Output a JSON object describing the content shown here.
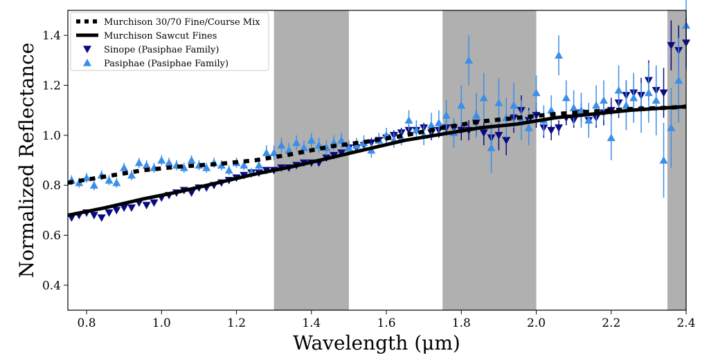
{
  "chart_data": {
    "type": "scatter",
    "xlabel": "Wavelength (μm)",
    "ylabel": "Normalized Reflectance",
    "xlim": [
      0.75,
      2.4
    ],
    "ylim": [
      0.3,
      1.5
    ],
    "xticks": [
      "0.8",
      "1.0",
      "1.2",
      "1.4",
      "1.6",
      "1.8",
      "2.0",
      "2.2",
      "2.4"
    ],
    "yticks": [
      "0.4",
      "0.6",
      "0.8",
      "1.0",
      "1.2",
      "1.4"
    ],
    "grid": false,
    "legend_position": "top-left",
    "shaded_bands": [
      [
        1.3,
        1.5
      ],
      [
        1.75,
        2.0
      ],
      [
        2.35,
        2.4
      ]
    ],
    "series": [
      {
        "name": "Murchison 30/70 Fine/Course Mix",
        "kind": "line",
        "style": "dotted",
        "color": "#000000",
        "x": [
          0.75,
          0.85,
          0.95,
          1.05,
          1.15,
          1.25,
          1.35,
          1.45,
          1.55,
          1.65,
          1.75,
          1.85,
          1.95,
          2.05,
          2.15,
          2.25,
          2.35,
          2.4
        ],
        "y": [
          0.81,
          0.835,
          0.86,
          0.875,
          0.885,
          0.9,
          0.925,
          0.955,
          0.975,
          1.0,
          1.03,
          1.055,
          1.07,
          1.085,
          1.095,
          1.105,
          1.11,
          1.115
        ]
      },
      {
        "name": "Murchison Sawcut Fines",
        "kind": "line",
        "style": "solid",
        "color": "#000000",
        "x": [
          0.75,
          0.85,
          0.95,
          1.05,
          1.15,
          1.25,
          1.35,
          1.45,
          1.55,
          1.65,
          1.75,
          1.85,
          1.95,
          2.05,
          2.15,
          2.25,
          2.35,
          2.4
        ],
        "y": [
          0.68,
          0.71,
          0.745,
          0.775,
          0.81,
          0.845,
          0.875,
          0.91,
          0.945,
          0.98,
          1.005,
          1.03,
          1.045,
          1.07,
          1.085,
          1.1,
          1.11,
          1.115
        ]
      },
      {
        "name": "Sinope (Pasiphae Family)",
        "kind": "scatter",
        "marker": "triangle-down",
        "color": "#0a0a80",
        "x": [
          0.76,
          0.78,
          0.8,
          0.82,
          0.84,
          0.86,
          0.88,
          0.9,
          0.92,
          0.94,
          0.96,
          0.98,
          1.0,
          1.02,
          1.04,
          1.06,
          1.08,
          1.1,
          1.12,
          1.14,
          1.16,
          1.18,
          1.2,
          1.22,
          1.24,
          1.26,
          1.28,
          1.3,
          1.32,
          1.34,
          1.36,
          1.38,
          1.4,
          1.42,
          1.44,
          1.46,
          1.48,
          1.5,
          1.52,
          1.54,
          1.56,
          1.58,
          1.6,
          1.62,
          1.64,
          1.66,
          1.68,
          1.7,
          1.72,
          1.74,
          1.76,
          1.78,
          1.8,
          1.82,
          1.84,
          1.86,
          1.88,
          1.9,
          1.92,
          1.94,
          1.96,
          1.98,
          2.0,
          2.02,
          2.04,
          2.06,
          2.08,
          2.1,
          2.12,
          2.14,
          2.16,
          2.18,
          2.2,
          2.22,
          2.24,
          2.26,
          2.28,
          2.3,
          2.32,
          2.34,
          2.36,
          2.38,
          2.4
        ],
        "y": [
          0.67,
          0.68,
          0.69,
          0.68,
          0.67,
          0.69,
          0.7,
          0.71,
          0.71,
          0.73,
          0.72,
          0.73,
          0.75,
          0.76,
          0.77,
          0.78,
          0.77,
          0.79,
          0.79,
          0.8,
          0.81,
          0.82,
          0.83,
          0.84,
          0.85,
          0.85,
          0.86,
          0.86,
          0.87,
          0.87,
          0.88,
          0.89,
          0.89,
          0.89,
          0.91,
          0.92,
          0.93,
          0.95,
          0.95,
          0.96,
          0.97,
          0.98,
          0.99,
          1.0,
          1.01,
          1.02,
          1.02,
          1.03,
          1.01,
          1.02,
          1.03,
          1.03,
          1.02,
          1.02,
          1.05,
          1.01,
          0.99,
          1.0,
          0.98,
          1.07,
          1.1,
          1.06,
          1.08,
          1.03,
          1.02,
          1.03,
          1.07,
          1.06,
          1.09,
          1.06,
          1.07,
          1.09,
          1.1,
          1.13,
          1.16,
          1.17,
          1.16,
          1.22,
          1.18,
          1.17,
          1.36,
          1.34,
          1.37
        ],
        "err": [
          0.01,
          0.01,
          0.01,
          0.01,
          0.01,
          0.01,
          0.01,
          0.01,
          0.01,
          0.01,
          0.01,
          0.01,
          0.01,
          0.01,
          0.01,
          0.01,
          0.01,
          0.01,
          0.01,
          0.01,
          0.01,
          0.01,
          0.01,
          0.01,
          0.01,
          0.01,
          0.01,
          0.01,
          0.01,
          0.01,
          0.01,
          0.01,
          0.01,
          0.01,
          0.01,
          0.01,
          0.01,
          0.02,
          0.02,
          0.02,
          0.02,
          0.02,
          0.02,
          0.02,
          0.02,
          0.02,
          0.02,
          0.02,
          0.03,
          0.03,
          0.03,
          0.03,
          0.04,
          0.04,
          0.05,
          0.05,
          0.05,
          0.06,
          0.06,
          0.06,
          0.06,
          0.05,
          0.05,
          0.04,
          0.04,
          0.03,
          0.03,
          0.03,
          0.04,
          0.04,
          0.04,
          0.05,
          0.05,
          0.06,
          0.06,
          0.07,
          0.07,
          0.08,
          0.09,
          0.1,
          0.1,
          0.1,
          0.1
        ]
      },
      {
        "name": "Pasiphae (Pasiphae Family)",
        "kind": "scatter",
        "marker": "triangle-up",
        "color": "#3b8fe8",
        "x": [
          0.76,
          0.78,
          0.8,
          0.82,
          0.84,
          0.86,
          0.88,
          0.9,
          0.92,
          0.94,
          0.96,
          0.98,
          1.0,
          1.02,
          1.04,
          1.06,
          1.08,
          1.1,
          1.12,
          1.14,
          1.16,
          1.18,
          1.2,
          1.22,
          1.24,
          1.26,
          1.28,
          1.3,
          1.32,
          1.34,
          1.36,
          1.38,
          1.4,
          1.42,
          1.44,
          1.46,
          1.48,
          1.5,
          1.52,
          1.54,
          1.56,
          1.58,
          1.6,
          1.62,
          1.64,
          1.66,
          1.68,
          1.7,
          1.72,
          1.74,
          1.76,
          1.78,
          1.8,
          1.82,
          1.84,
          1.86,
          1.88,
          1.9,
          1.92,
          1.94,
          1.96,
          1.98,
          2.0,
          2.02,
          2.04,
          2.06,
          2.08,
          2.1,
          2.12,
          2.14,
          2.16,
          2.18,
          2.2,
          2.22,
          2.24,
          2.26,
          2.28,
          2.3,
          2.32,
          2.34,
          2.36,
          2.38,
          2.4
        ],
        "y": [
          0.82,
          0.81,
          0.83,
          0.8,
          0.84,
          0.82,
          0.81,
          0.87,
          0.84,
          0.89,
          0.88,
          0.87,
          0.9,
          0.89,
          0.88,
          0.87,
          0.9,
          0.88,
          0.87,
          0.89,
          0.88,
          0.86,
          0.89,
          0.88,
          0.85,
          0.88,
          0.93,
          0.93,
          0.96,
          0.94,
          0.97,
          0.95,
          0.98,
          0.96,
          0.95,
          0.97,
          0.98,
          0.95,
          0.96,
          0.97,
          0.94,
          0.98,
          1.0,
          0.98,
          0.99,
          1.06,
          1.02,
          1.0,
          1.04,
          1.05,
          1.08,
          1.01,
          1.12,
          1.3,
          1.08,
          1.15,
          0.95,
          1.13,
          1.07,
          1.12,
          1.06,
          1.03,
          1.17,
          1.06,
          1.1,
          1.32,
          1.15,
          1.11,
          1.1,
          1.06,
          1.12,
          1.14,
          0.99,
          1.18,
          1.12,
          1.15,
          1.11,
          1.17,
          1.14,
          0.9,
          1.03,
          1.22,
          1.44
        ],
        "err": [
          0.02,
          0.02,
          0.02,
          0.02,
          0.02,
          0.02,
          0.02,
          0.02,
          0.02,
          0.02,
          0.02,
          0.02,
          0.02,
          0.02,
          0.02,
          0.02,
          0.02,
          0.02,
          0.02,
          0.02,
          0.02,
          0.02,
          0.02,
          0.02,
          0.02,
          0.02,
          0.03,
          0.03,
          0.03,
          0.03,
          0.03,
          0.03,
          0.03,
          0.03,
          0.03,
          0.03,
          0.03,
          0.03,
          0.03,
          0.03,
          0.03,
          0.03,
          0.03,
          0.03,
          0.03,
          0.04,
          0.04,
          0.04,
          0.05,
          0.05,
          0.06,
          0.06,
          0.08,
          0.1,
          0.09,
          0.1,
          0.1,
          0.1,
          0.08,
          0.09,
          0.08,
          0.07,
          0.07,
          0.06,
          0.06,
          0.08,
          0.07,
          0.07,
          0.07,
          0.07,
          0.08,
          0.08,
          0.09,
          0.1,
          0.1,
          0.1,
          0.1,
          0.12,
          0.14,
          0.15,
          0.16,
          0.17,
          0.18
        ]
      }
    ]
  }
}
